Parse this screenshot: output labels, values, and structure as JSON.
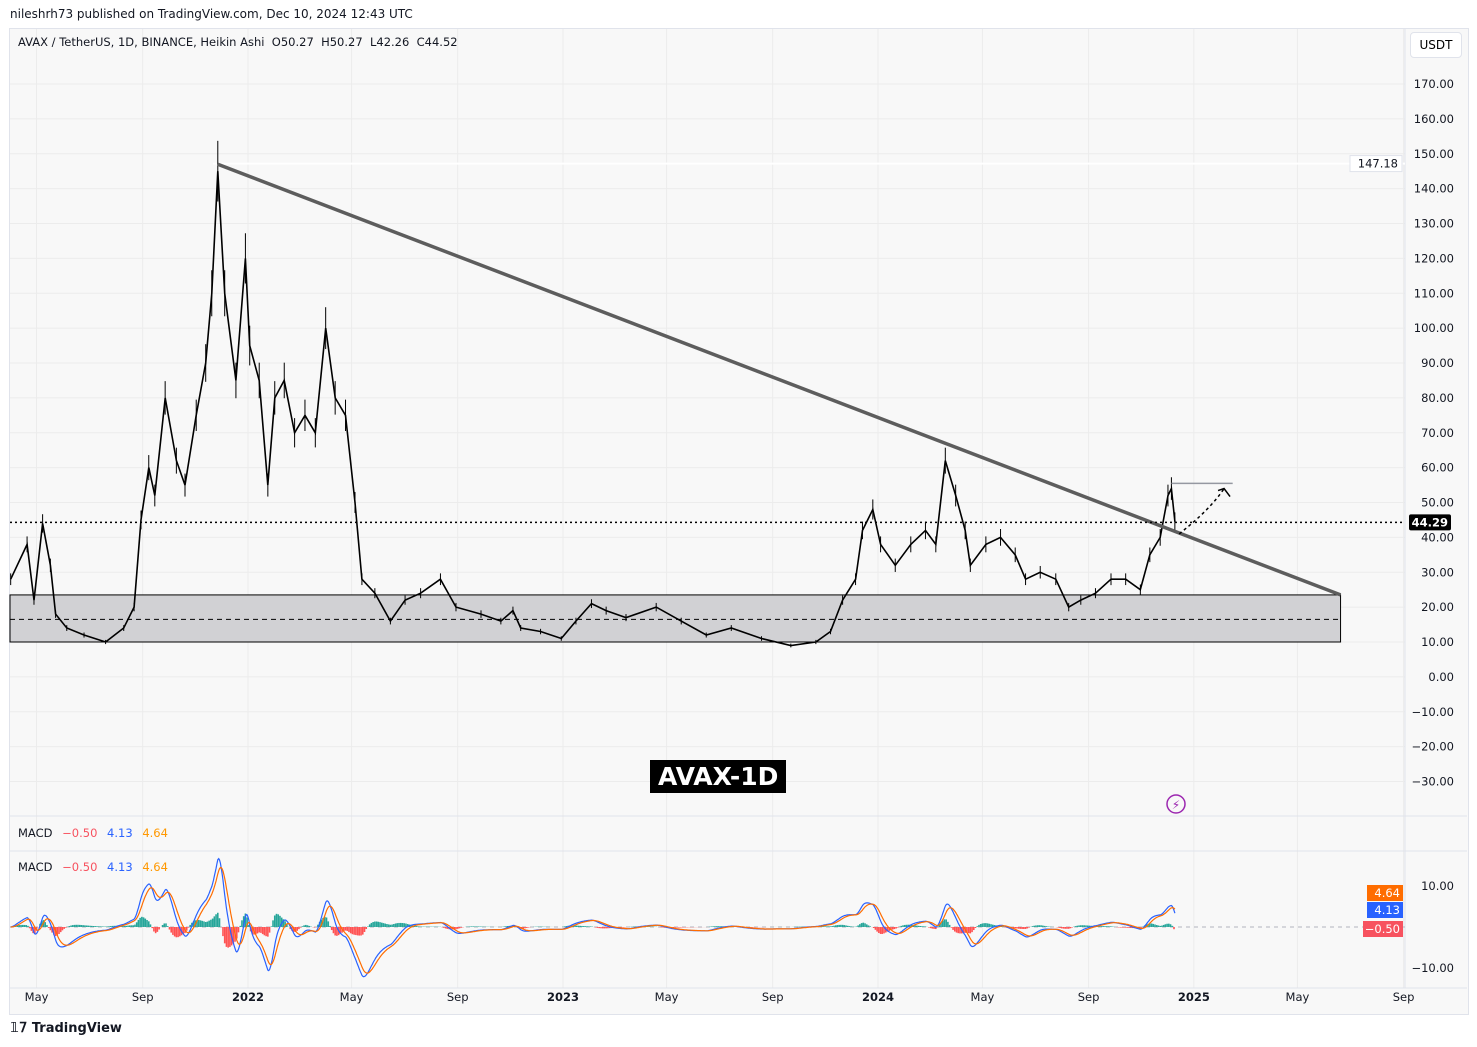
{
  "header": {
    "published": "nileshrh73 published on TradingView.com, Dec 10, 2024 12:43 UTC",
    "symbol": "AVAX / TetherUS, 1D, BINANCE, Heikin Ashi",
    "open": "O50.27",
    "high": "H50.27",
    "low": "L42.26",
    "close": "C44.52"
  },
  "currency_button": "USDT",
  "badge": "AVAX-1D",
  "footer": "TradingView",
  "macd_legend": {
    "label": "MACD",
    "hist": "−0.50",
    "macd": "4.13",
    "signal": "4.64",
    "hist_color": "#f7525f",
    "macd_color": "#2962ff",
    "signal_color": "#ff6d00"
  },
  "chart_data": {
    "type": "line",
    "style": "Heikin Ashi candles",
    "ylim": [
      -35,
      180
    ],
    "y_ticks": [
      170,
      160,
      150,
      140,
      130,
      120,
      110,
      100,
      90,
      80,
      70,
      60,
      50,
      40,
      30,
      20,
      10,
      0,
      -10,
      -20,
      -30
    ],
    "x_ticks": [
      {
        "date": "2021-05-01",
        "label": "May"
      },
      {
        "date": "2021-09-01",
        "label": "Sep"
      },
      {
        "date": "2022-01-01",
        "label": "2022"
      },
      {
        "date": "2022-05-01",
        "label": "May"
      },
      {
        "date": "2022-09-01",
        "label": "Sep"
      },
      {
        "date": "2023-01-01",
        "label": "2023"
      },
      {
        "date": "2023-05-01",
        "label": "May"
      },
      {
        "date": "2023-09-01",
        "label": "Sep"
      },
      {
        "date": "2024-01-01",
        "label": "2024"
      },
      {
        "date": "2024-05-01",
        "label": "May"
      },
      {
        "date": "2024-09-01",
        "label": "Sep"
      },
      {
        "date": "2025-01-01",
        "label": "2025"
      },
      {
        "date": "2025-05-01",
        "label": "May"
      },
      {
        "date": "2025-09-01",
        "label": "Sep"
      }
    ],
    "xlim": [
      "2021-03-30",
      "2025-09-05"
    ],
    "price_labels": {
      "high": "147.18",
      "last": "44.29"
    },
    "series": [
      [
        "2021-04-01",
        28
      ],
      [
        "2021-04-20",
        38
      ],
      [
        "2021-04-28",
        22
      ],
      [
        "2021-05-08",
        44
      ],
      [
        "2021-05-17",
        32
      ],
      [
        "2021-05-23",
        18
      ],
      [
        "2021-06-05",
        14
      ],
      [
        "2021-06-25",
        12
      ],
      [
        "2021-07-20",
        10
      ],
      [
        "2021-08-10",
        14
      ],
      [
        "2021-08-22",
        20
      ],
      [
        "2021-08-30",
        45
      ],
      [
        "2021-09-08",
        60
      ],
      [
        "2021-09-15",
        52
      ],
      [
        "2021-09-27",
        80
      ],
      [
        "2021-10-10",
        62
      ],
      [
        "2021-10-20",
        55
      ],
      [
        "2021-11-02",
        75
      ],
      [
        "2021-11-13",
        90
      ],
      [
        "2021-11-20",
        110
      ],
      [
        "2021-11-27",
        145
      ],
      [
        "2021-12-05",
        110
      ],
      [
        "2021-12-18",
        85
      ],
      [
        "2021-12-29",
        120
      ],
      [
        "2022-01-03",
        95
      ],
      [
        "2022-01-14",
        85
      ],
      [
        "2022-01-24",
        55
      ],
      [
        "2022-02-01",
        80
      ],
      [
        "2022-02-12",
        85
      ],
      [
        "2022-02-24",
        70
      ],
      [
        "2022-03-08",
        75
      ],
      [
        "2022-03-20",
        70
      ],
      [
        "2022-04-01",
        100
      ],
      [
        "2022-04-12",
        80
      ],
      [
        "2022-04-24",
        75
      ],
      [
        "2022-05-05",
        50
      ],
      [
        "2022-05-13",
        28
      ],
      [
        "2022-05-28",
        24
      ],
      [
        "2022-06-15",
        16
      ],
      [
        "2022-07-02",
        22
      ],
      [
        "2022-07-20",
        24
      ],
      [
        "2022-08-12",
        28
      ],
      [
        "2022-08-30",
        20
      ],
      [
        "2022-09-28",
        18
      ],
      [
        "2022-10-21",
        16
      ],
      [
        "2022-11-04",
        19
      ],
      [
        "2022-11-13",
        14
      ],
      [
        "2022-12-06",
        13
      ],
      [
        "2022-12-30",
        11
      ],
      [
        "2023-01-16",
        16
      ],
      [
        "2023-02-03",
        21
      ],
      [
        "2023-02-20",
        19
      ],
      [
        "2023-03-15",
        17
      ],
      [
        "2023-04-19",
        20
      ],
      [
        "2023-05-18",
        16
      ],
      [
        "2023-06-16",
        12
      ],
      [
        "2023-07-15",
        14
      ],
      [
        "2023-08-19",
        11
      ],
      [
        "2023-09-22",
        9
      ],
      [
        "2023-10-21",
        10
      ],
      [
        "2023-11-07",
        13
      ],
      [
        "2023-11-21",
        22
      ],
      [
        "2023-12-06",
        28
      ],
      [
        "2023-12-14",
        42
      ],
      [
        "2023-12-26",
        48
      ],
      [
        "2024-01-04",
        38
      ],
      [
        "2024-01-21",
        32
      ],
      [
        "2024-02-08",
        38
      ],
      [
        "2024-02-25",
        42
      ],
      [
        "2024-03-08",
        38
      ],
      [
        "2024-03-19",
        62
      ],
      [
        "2024-03-31",
        52
      ],
      [
        "2024-04-11",
        42
      ],
      [
        "2024-04-17",
        32
      ],
      [
        "2024-05-05",
        38
      ],
      [
        "2024-05-22",
        40
      ],
      [
        "2024-06-08",
        35
      ],
      [
        "2024-06-20",
        28
      ],
      [
        "2024-07-07",
        30
      ],
      [
        "2024-07-25",
        28
      ],
      [
        "2024-08-09",
        20
      ],
      [
        "2024-08-23",
        22
      ],
      [
        "2024-09-09",
        24
      ],
      [
        "2024-09-27",
        28
      ],
      [
        "2024-10-14",
        28
      ],
      [
        "2024-10-31",
        25
      ],
      [
        "2024-11-11",
        35
      ],
      [
        "2024-11-23",
        40
      ],
      [
        "2024-12-02",
        52
      ],
      [
        "2024-12-06",
        54
      ],
      [
        "2024-12-10",
        44.5
      ]
    ],
    "annotations": {
      "trendline": [
        [
          "2021-11-27",
          147
        ],
        [
          "2025-06-20",
          23.5
        ]
      ],
      "support_zone": {
        "from": "2021-03-30",
        "to": "2025-06-20",
        "low": 10,
        "high": 23.5,
        "mid": 16.5
      },
      "resistance": {
        "from": "2024-12-06",
        "to": "2025-02-15",
        "value": 55.5
      },
      "last_price_line": 44.29,
      "projection_arrow": [
        [
          "2024-12-15",
          41
        ],
        [
          "2025-01-20",
          48
        ],
        [
          "2025-02-05",
          54
        ]
      ]
    },
    "macd": {
      "ylim": [
        -14,
        15
      ],
      "y_ticks": [
        10,
        -10
      ],
      "values": {
        "histogram": -0.5,
        "macd": 4.13,
        "signal": 4.64
      }
    }
  }
}
